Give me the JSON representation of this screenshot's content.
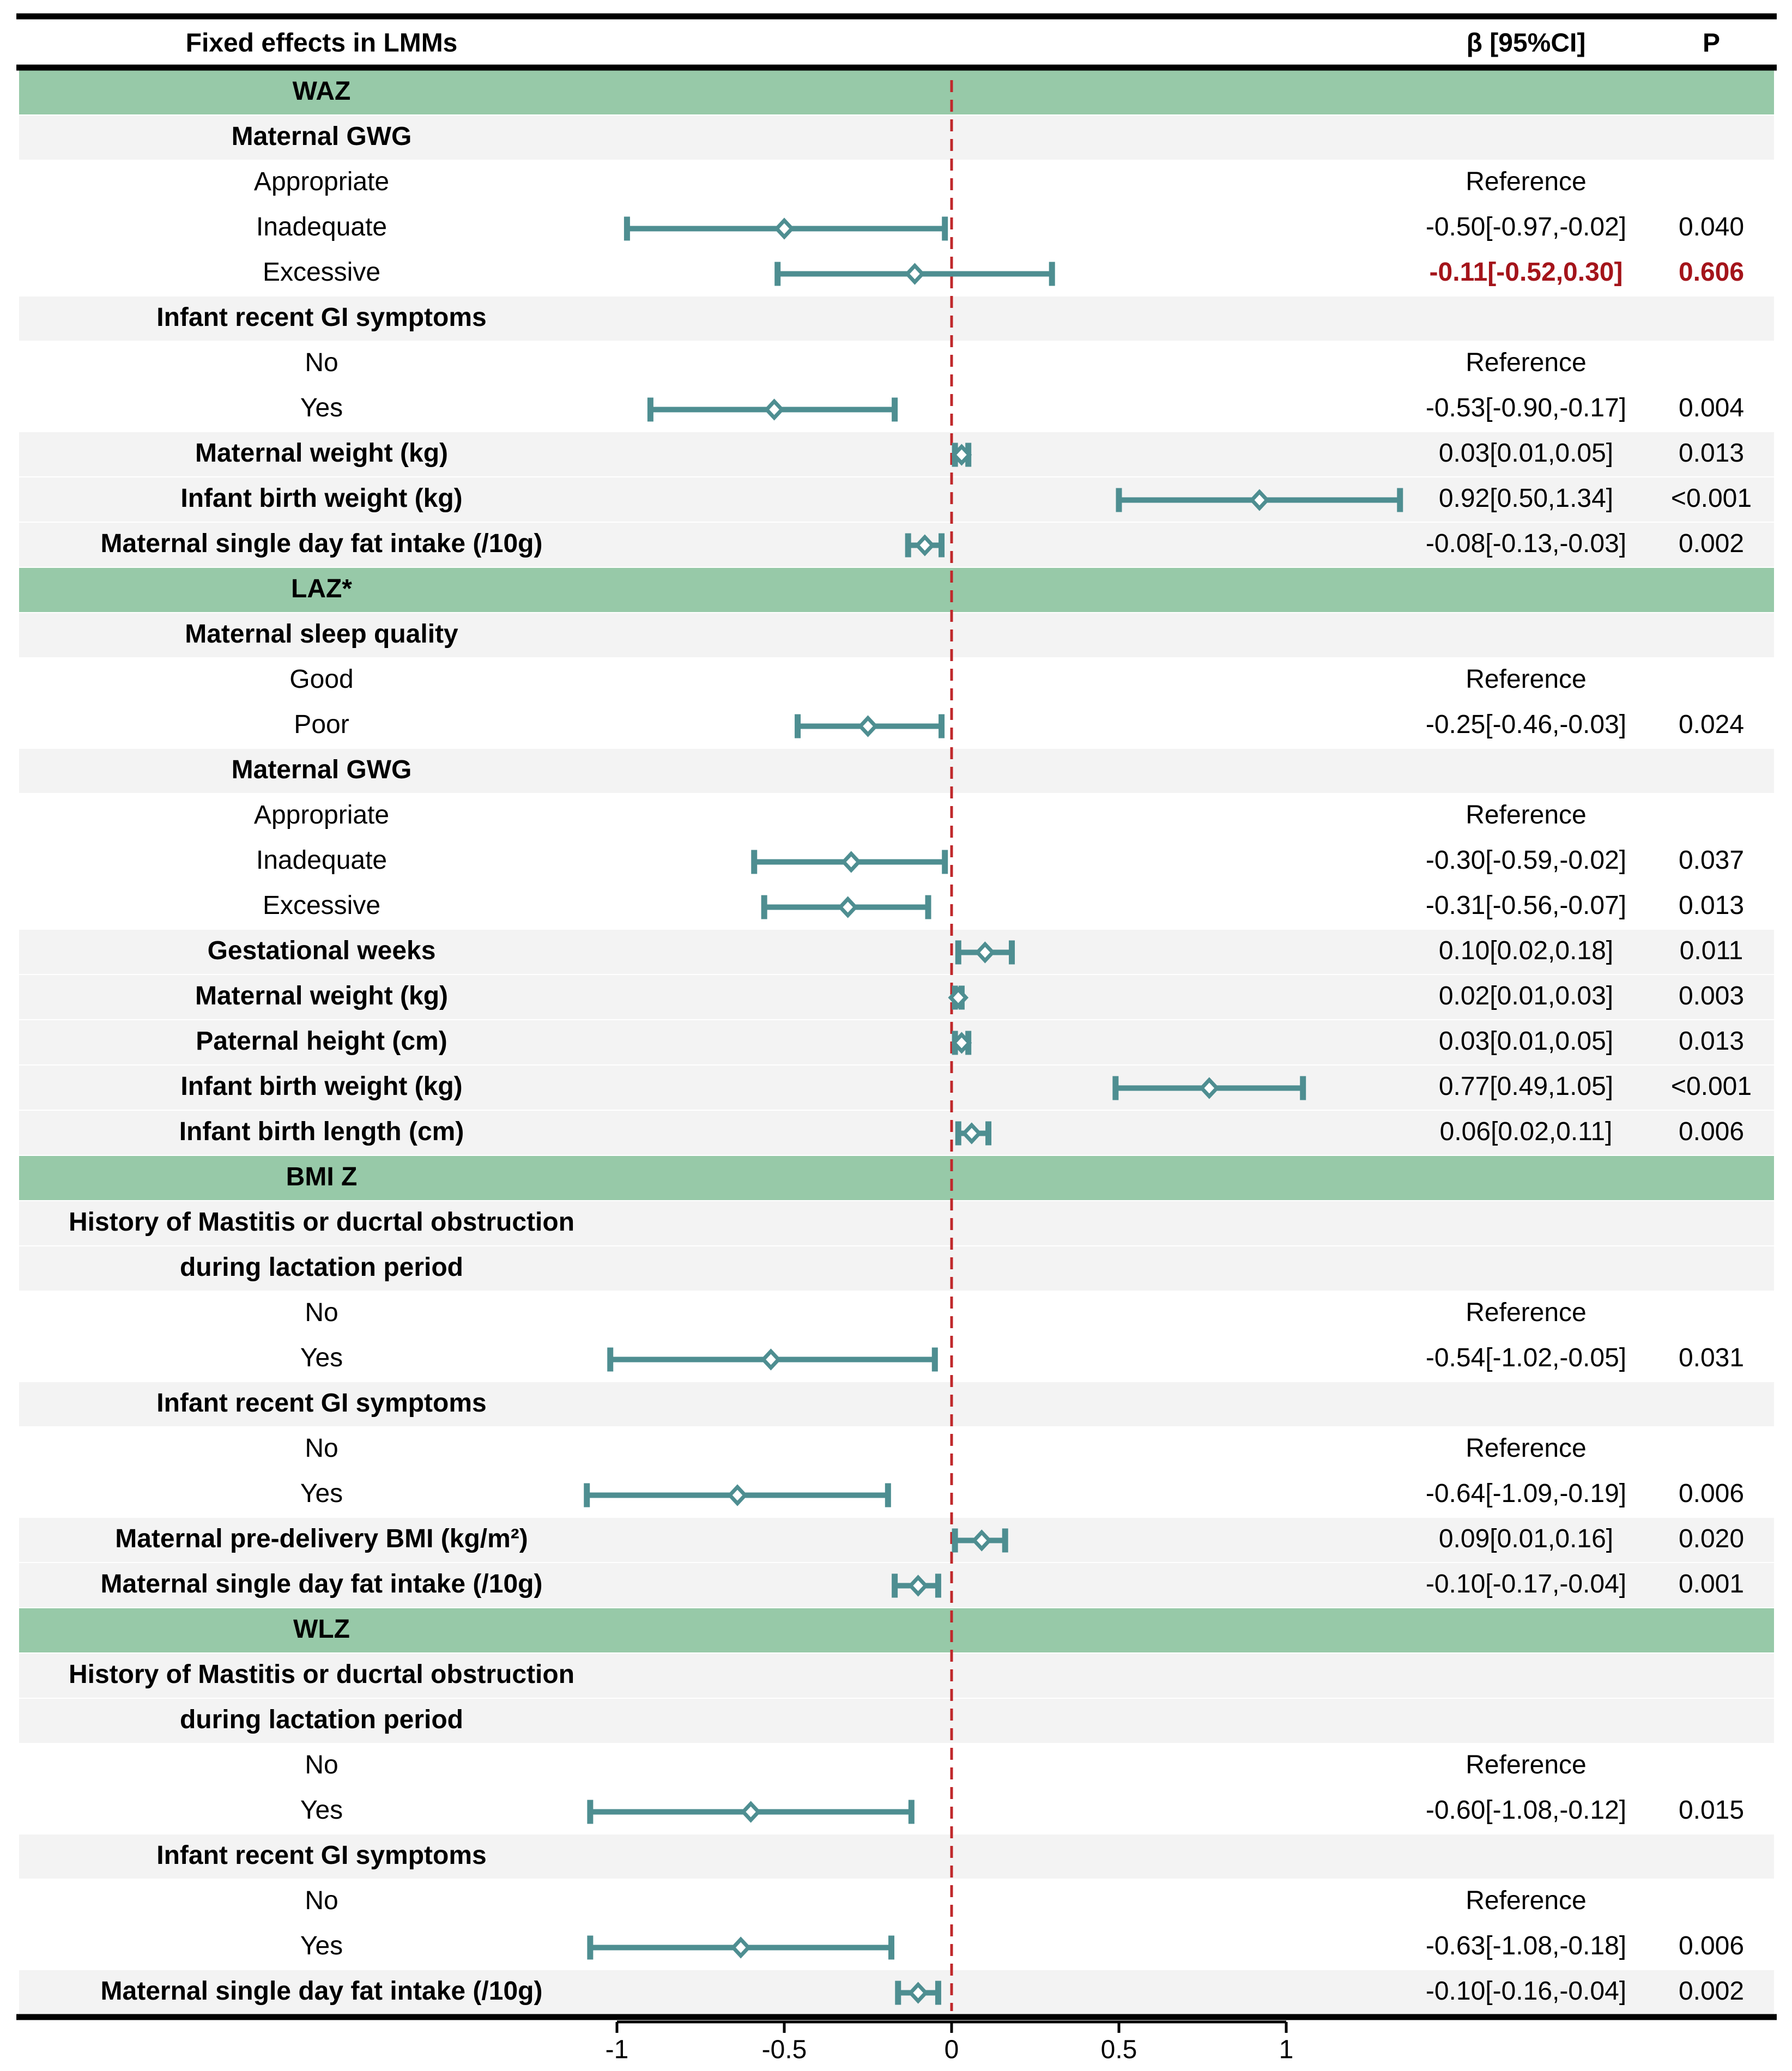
{
  "colors": {
    "section_band": "#97C9A8",
    "subgroup_band": "#F3F3F3",
    "ci_line": "#4E8E91",
    "reference_line": "#C0282B",
    "highlight_text": "#A4141A",
    "text": "#000000"
  },
  "chart_data": {
    "type": "forest",
    "header": {
      "label": "Fixed effects in LMMs",
      "beta": "β [95%CI]",
      "p": "P"
    },
    "xlim": [
      -1.0,
      1.0
    ],
    "xticks": [
      "-1",
      "-0.5",
      "0",
      "0.5",
      "1"
    ],
    "reference_value": 0,
    "rows": [
      {
        "kind": "section",
        "label": "WAZ"
      },
      {
        "kind": "group",
        "label": "Maternal GWG"
      },
      {
        "kind": "level",
        "label": "Appropriate",
        "beta_text": "Reference"
      },
      {
        "kind": "level",
        "label": "Inadequate",
        "beta_text": "-0.50[-0.97,-0.02]",
        "p": "0.040",
        "est": -0.5,
        "lo": -0.97,
        "hi": -0.02
      },
      {
        "kind": "level",
        "label": "Excessive",
        "beta_text": "-0.11[-0.52,0.30]",
        "p": "0.606",
        "est": -0.11,
        "lo": -0.52,
        "hi": 0.3,
        "highlight": true
      },
      {
        "kind": "group",
        "label": "Infant recent GI symptoms"
      },
      {
        "kind": "level",
        "label": "No",
        "beta_text": "Reference"
      },
      {
        "kind": "level",
        "label": "Yes",
        "beta_text": "-0.53[-0.90,-0.17]",
        "p": "0.004",
        "est": -0.53,
        "lo": -0.9,
        "hi": -0.17
      },
      {
        "kind": "var",
        "label": "Maternal weight (kg)",
        "beta_text": "0.03[0.01,0.05]",
        "p": "0.013",
        "est": 0.03,
        "lo": 0.01,
        "hi": 0.05
      },
      {
        "kind": "var",
        "label": "Infant birth weight (kg)",
        "beta_text": "0.92[0.50,1.34]",
        "p": "<0.001",
        "est": 0.92,
        "lo": 0.5,
        "hi": 1.34
      },
      {
        "kind": "var",
        "label": "Maternal single day fat intake (/10g)",
        "beta_text": "-0.08[-0.13,-0.03]",
        "p": "0.002",
        "est": -0.08,
        "lo": -0.13,
        "hi": -0.03
      },
      {
        "kind": "section",
        "label": "LAZ*"
      },
      {
        "kind": "group",
        "label": "Maternal sleep quality"
      },
      {
        "kind": "level",
        "label": "Good",
        "beta_text": "Reference"
      },
      {
        "kind": "level",
        "label": "Poor",
        "beta_text": "-0.25[-0.46,-0.03]",
        "p": "0.024",
        "est": -0.25,
        "lo": -0.46,
        "hi": -0.03
      },
      {
        "kind": "group",
        "label": "Maternal GWG"
      },
      {
        "kind": "level",
        "label": "Appropriate",
        "beta_text": "Reference"
      },
      {
        "kind": "level",
        "label": "Inadequate",
        "beta_text": "-0.30[-0.59,-0.02]",
        "p": "0.037",
        "est": -0.3,
        "lo": -0.59,
        "hi": -0.02
      },
      {
        "kind": "level",
        "label": "Excessive",
        "beta_text": "-0.31[-0.56,-0.07]",
        "p": "0.013",
        "est": -0.31,
        "lo": -0.56,
        "hi": -0.07
      },
      {
        "kind": "var",
        "label": "Gestational weeks",
        "beta_text": "0.10[0.02,0.18]",
        "p": "0.011",
        "est": 0.1,
        "lo": 0.02,
        "hi": 0.18
      },
      {
        "kind": "var",
        "label": "Maternal weight (kg)",
        "beta_text": "0.02[0.01,0.03]",
        "p": "0.003",
        "est": 0.02,
        "lo": 0.01,
        "hi": 0.03
      },
      {
        "kind": "var",
        "label": "Paternal height (cm)",
        "beta_text": "0.03[0.01,0.05]",
        "p": "0.013",
        "est": 0.03,
        "lo": 0.01,
        "hi": 0.05
      },
      {
        "kind": "var",
        "label": "Infant birth weight (kg)",
        "beta_text": "0.77[0.49,1.05]",
        "p": "<0.001",
        "est": 0.77,
        "lo": 0.49,
        "hi": 1.05
      },
      {
        "kind": "var",
        "label": "Infant birth length (cm)",
        "beta_text": "0.06[0.02,0.11]",
        "p": "0.006",
        "est": 0.06,
        "lo": 0.02,
        "hi": 0.11
      },
      {
        "kind": "section",
        "label": "BMI Z"
      },
      {
        "kind": "group",
        "label": "History of Mastitis or ducrtal obstruction"
      },
      {
        "kind": "group",
        "label": "during lactation period"
      },
      {
        "kind": "level",
        "label": "No",
        "beta_text": "Reference"
      },
      {
        "kind": "level",
        "label": "Yes",
        "beta_text": "-0.54[-1.02,-0.05]",
        "p": "0.031",
        "est": -0.54,
        "lo": -1.02,
        "hi": -0.05
      },
      {
        "kind": "group",
        "label": "Infant recent GI symptoms"
      },
      {
        "kind": "level",
        "label": "No",
        "beta_text": "Reference"
      },
      {
        "kind": "level",
        "label": "Yes",
        "beta_text": "-0.64[-1.09,-0.19]",
        "p": "0.006",
        "est": -0.64,
        "lo": -1.09,
        "hi": -0.19
      },
      {
        "kind": "var",
        "label": "Maternal pre-delivery BMI (kg/m²)",
        "beta_text": "0.09[0.01,0.16]",
        "p": "0.020",
        "est": 0.09,
        "lo": 0.01,
        "hi": 0.16
      },
      {
        "kind": "var",
        "label": "Maternal single day fat intake (/10g)",
        "beta_text": "-0.10[-0.17,-0.04]",
        "p": "0.001",
        "est": -0.1,
        "lo": -0.17,
        "hi": -0.04
      },
      {
        "kind": "section",
        "label": "WLZ"
      },
      {
        "kind": "group",
        "label": "History of Mastitis or ducrtal obstruction"
      },
      {
        "kind": "group",
        "label": "during lactation period"
      },
      {
        "kind": "level",
        "label": "No",
        "beta_text": "Reference"
      },
      {
        "kind": "level",
        "label": "Yes",
        "beta_text": "-0.60[-1.08,-0.12]",
        "p": "0.015",
        "est": -0.6,
        "lo": -1.08,
        "hi": -0.12
      },
      {
        "kind": "group",
        "label": "Infant recent GI symptoms"
      },
      {
        "kind": "level",
        "label": "No",
        "beta_text": "Reference"
      },
      {
        "kind": "level",
        "label": "Yes",
        "beta_text": "-0.63[-1.08,-0.18]",
        "p": "0.006",
        "est": -0.63,
        "lo": -1.08,
        "hi": -0.18
      },
      {
        "kind": "var",
        "label": "Maternal single day fat intake (/10g)",
        "beta_text": "-0.10[-0.16,-0.04]",
        "p": "0.002",
        "est": -0.1,
        "lo": -0.16,
        "hi": -0.04
      }
    ]
  }
}
